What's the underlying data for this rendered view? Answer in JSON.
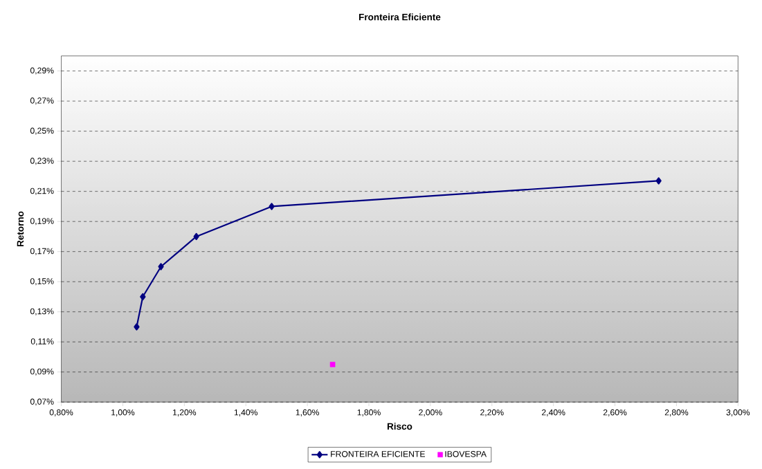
{
  "chart_data": {
    "type": "line",
    "title": "Fronteira Eficiente",
    "xlabel": "Risco",
    "ylabel": "Retorno",
    "series": [
      {
        "name": "FRONTEIRA EFICIENTE",
        "color": "#000080",
        "marker": "diamond",
        "x": [
          1.045,
          1.065,
          1.124,
          1.239,
          1.484,
          2.742
        ],
        "values": [
          0.12,
          0.14,
          0.16,
          0.18,
          0.2,
          0.217
        ]
      },
      {
        "name": "IBOVESPA",
        "type": "scatter",
        "color": "#ff00ff",
        "marker": "square",
        "x": [
          1.682
        ],
        "values": [
          0.095
        ]
      }
    ],
    "xlim": [
      0.8,
      3.0
    ],
    "xticks": [
      {
        "value": 0.8,
        "label": "0,80%"
      },
      {
        "value": 1.0,
        "label": "1,00%"
      },
      {
        "value": 1.2,
        "label": "1,20%"
      },
      {
        "value": 1.4,
        "label": "1,40%"
      },
      {
        "value": 1.6,
        "label": "1,60%"
      },
      {
        "value": 1.8,
        "label": "1,80%"
      },
      {
        "value": 2.0,
        "label": "2,00%"
      },
      {
        "value": 2.2,
        "label": "2,20%"
      },
      {
        "value": 2.4,
        "label": "2,40%"
      },
      {
        "value": 2.6,
        "label": "2,60%"
      },
      {
        "value": 2.8,
        "label": "2,80%"
      },
      {
        "value": 3.0,
        "label": "3,00%"
      }
    ],
    "ylim": [
      0.07,
      0.3
    ],
    "yticks": [
      {
        "value": 0.07,
        "label": "0,07%"
      },
      {
        "value": 0.09,
        "label": "0,09%"
      },
      {
        "value": 0.11,
        "label": "0,11%"
      },
      {
        "value": 0.13,
        "label": "0,13%"
      },
      {
        "value": 0.15,
        "label": "0,15%"
      },
      {
        "value": 0.17,
        "label": "0,17%"
      },
      {
        "value": 0.19,
        "label": "0,19%"
      },
      {
        "value": 0.21,
        "label": "0,21%"
      },
      {
        "value": 0.23,
        "label": "0,23%"
      },
      {
        "value": 0.25,
        "label": "0,25%"
      },
      {
        "value": 0.27,
        "label": "0,27%"
      },
      {
        "value": 0.29,
        "label": "0,29%"
      }
    ],
    "grid": "y",
    "legend": "bottom"
  }
}
